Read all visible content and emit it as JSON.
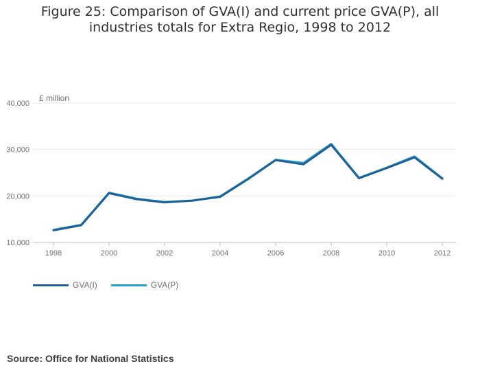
{
  "title": "Figure 25: Comparison of GVA(I) and current price GVA(P), all industries totals for Extra Regio, 1998 to 2012",
  "source": "Source: Office for National Statistics",
  "colors": {
    "gva_i": "#206095",
    "gva_p": "#27a0cc",
    "grid": "#e6e6e6",
    "axis": "#bcbcbd"
  },
  "chart_data": {
    "type": "line",
    "title": "Figure 25: Comparison of GVA(I) and current price GVA(P), all industries totals for Extra Regio, 1998 to 2012",
    "ylabel": "£ million",
    "xlabel": "",
    "x": [
      1998,
      1999,
      2000,
      2001,
      2002,
      2003,
      2004,
      2005,
      2006,
      2007,
      2008,
      2009,
      2010,
      2011,
      2012
    ],
    "xticks": [
      "1998",
      "2000",
      "2002",
      "2004",
      "2006",
      "2008",
      "2010",
      "2012"
    ],
    "yticks": [
      "10,000",
      "20,000",
      "30,000",
      "40,000"
    ],
    "ylim": [
      10000,
      40000
    ],
    "grid": true,
    "legend_position": "bottom-left",
    "series": [
      {
        "name": "GVA(I)",
        "values": [
          12600,
          13700,
          20600,
          19300,
          18600,
          19000,
          19800,
          23600,
          27700,
          26800,
          31000,
          23800,
          26000,
          28300,
          23700
        ]
      },
      {
        "name": "GVA(P)",
        "values": [
          12700,
          13800,
          20700,
          19400,
          18700,
          19000,
          19900,
          23700,
          27800,
          27100,
          31200,
          23900,
          26100,
          28500,
          23800
        ]
      }
    ]
  }
}
